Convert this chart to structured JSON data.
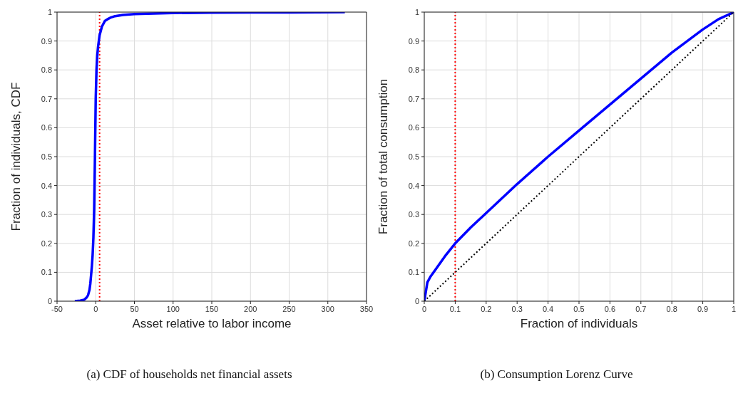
{
  "chart_data": [
    {
      "type": "line",
      "xlabel": "Asset relative to labor income",
      "ylabel": "Fraction of individuals, CDF",
      "xlim": [
        -50,
        350
      ],
      "xticks": [
        -50,
        0,
        50,
        100,
        150,
        200,
        250,
        300,
        350
      ],
      "ylim": [
        0,
        1
      ],
      "yticks": [
        0,
        0.1,
        0.2,
        0.3,
        0.4,
        0.5,
        0.6,
        0.7,
        0.8,
        0.9,
        1
      ],
      "grid": true,
      "marker": "none",
      "annotations": [
        "(a) CDF of households net financial assets"
      ],
      "ref_lines": [
        {
          "axis": "x",
          "value": 5,
          "color": "#ff0000",
          "line_style": "dotted"
        }
      ],
      "series": [
        {
          "color": "#0000ff",
          "line_style": "solid",
          "x": [
            -27,
            -20,
            -15,
            -12,
            -10,
            -8,
            -7,
            -6,
            -5,
            -4,
            -3,
            -2,
            -1,
            0,
            1,
            2,
            3,
            5,
            8,
            12,
            15,
            20,
            25,
            35,
            50,
            75,
            100,
            150,
            200,
            250,
            322
          ],
          "values": [
            0,
            0.002,
            0.005,
            0.012,
            0.02,
            0.04,
            0.06,
            0.09,
            0.12,
            0.16,
            0.22,
            0.32,
            0.5,
            0.7,
            0.8,
            0.85,
            0.88,
            0.92,
            0.95,
            0.97,
            0.975,
            0.982,
            0.986,
            0.99,
            0.993,
            0.995,
            0.997,
            0.998,
            0.999,
            0.999,
            1
          ]
        }
      ]
    },
    {
      "type": "line",
      "xlabel": "Fraction of individuals",
      "ylabel": "Fraction of total consumption",
      "xlim": [
        0,
        1
      ],
      "xticks": [
        0,
        0.1,
        0.2,
        0.3,
        0.4,
        0.5,
        0.6,
        0.7,
        0.8,
        0.9,
        1
      ],
      "ylim": [
        0,
        1
      ],
      "yticks": [
        0,
        0.1,
        0.2,
        0.3,
        0.4,
        0.5,
        0.6,
        0.7,
        0.8,
        0.9,
        1
      ],
      "grid": true,
      "marker": "none",
      "annotations": [
        "(b) Consumption Lorenz Curve"
      ],
      "ref_lines": [
        {
          "axis": "x",
          "value": 0.1,
          "color": "#ff0000",
          "line_style": "dotted"
        }
      ],
      "series": [
        {
          "color": "#0000ff",
          "line_style": "solid",
          "x": [
            0,
            0.01,
            0.02,
            0.03,
            0.05,
            0.07,
            0.1,
            0.15,
            0.2,
            0.3,
            0.4,
            0.5,
            0.6,
            0.7,
            0.8,
            0.9,
            0.95,
            1
          ],
          "values": [
            0,
            0.065,
            0.085,
            0.1,
            0.13,
            0.16,
            0.2,
            0.255,
            0.305,
            0.405,
            0.5,
            0.59,
            0.68,
            0.77,
            0.86,
            0.94,
            0.975,
            1
          ]
        },
        {
          "color": "#000000",
          "line_style": "dotted",
          "x": [
            0,
            1
          ],
          "values": [
            0,
            1
          ]
        }
      ]
    }
  ]
}
